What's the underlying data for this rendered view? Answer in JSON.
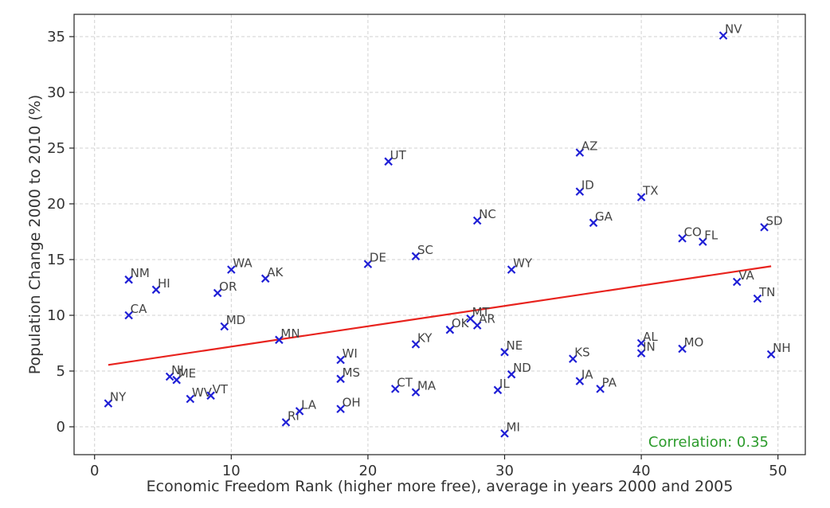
{
  "chart_data": {
    "type": "scatter",
    "title": "",
    "xlabel": "Economic Freedom Rank (higher more free), average in years 2000 and 2005",
    "ylabel": "Population Change 2000 to 2010 (%)",
    "xlim": [
      -1.5,
      52
    ],
    "ylim": [
      -2.5,
      37
    ],
    "xticks": [
      0,
      10,
      20,
      30,
      40,
      50
    ],
    "yticks": [
      0,
      5,
      10,
      15,
      20,
      25,
      30,
      35
    ],
    "grid": true,
    "marker_color": "#1f1fd6",
    "trend_color": "#e8231e",
    "trendline": {
      "x": [
        1,
        49.5
      ],
      "y": [
        5.55,
        14.4
      ]
    },
    "annotation": {
      "text": "Correlation: 0.35",
      "color": "#2b9b2b",
      "position": "bottom-right"
    },
    "points": [
      {
        "label": "NY",
        "x": 1,
        "y": 2.1
      },
      {
        "label": "NM",
        "x": 2.5,
        "y": 13.2
      },
      {
        "label": "CA",
        "x": 2.5,
        "y": 10
      },
      {
        "label": "HI",
        "x": 4.5,
        "y": 12.3
      },
      {
        "label": "NJ",
        "x": 5.5,
        "y": 4.5
      },
      {
        "label": "ME",
        "x": 6,
        "y": 4.2
      },
      {
        "label": "WV",
        "x": 7,
        "y": 2.5
      },
      {
        "label": "VT",
        "x": 8.5,
        "y": 2.8
      },
      {
        "label": "OR",
        "x": 9,
        "y": 12
      },
      {
        "label": "MD",
        "x": 9.5,
        "y": 9
      },
      {
        "label": "WA",
        "x": 10,
        "y": 14.1
      },
      {
        "label": "AK",
        "x": 12.5,
        "y": 13.3
      },
      {
        "label": "MN",
        "x": 13.5,
        "y": 7.8
      },
      {
        "label": "RI",
        "x": 14,
        "y": 0.4
      },
      {
        "label": "LA",
        "x": 15,
        "y": 1.4
      },
      {
        "label": "WI",
        "x": 18,
        "y": 6
      },
      {
        "label": "MS",
        "x": 18,
        "y": 4.3
      },
      {
        "label": "OH",
        "x": 18,
        "y": 1.6
      },
      {
        "label": "DE",
        "x": 20,
        "y": 14.6
      },
      {
        "label": "UT",
        "x": 21.5,
        "y": 23.8
      },
      {
        "label": "CT",
        "x": 22,
        "y": 3.4
      },
      {
        "label": "SC",
        "x": 23.5,
        "y": 15.3
      },
      {
        "label": "KY",
        "x": 23.5,
        "y": 7.4
      },
      {
        "label": "MA",
        "x": 23.5,
        "y": 3.1
      },
      {
        "label": "OK",
        "x": 26,
        "y": 8.7
      },
      {
        "label": "MT",
        "x": 27.5,
        "y": 9.7
      },
      {
        "label": "AR",
        "x": 28,
        "y": 9.1
      },
      {
        "label": "NC",
        "x": 28,
        "y": 18.5
      },
      {
        "label": "IL",
        "x": 29.5,
        "y": 3.3
      },
      {
        "label": "NE",
        "x": 30,
        "y": 6.7
      },
      {
        "label": "MI",
        "x": 30,
        "y": -0.6
      },
      {
        "label": "ND",
        "x": 30.5,
        "y": 4.7
      },
      {
        "label": "WY",
        "x": 30.5,
        "y": 14.1
      },
      {
        "label": "KS",
        "x": 35,
        "y": 6.1
      },
      {
        "label": "AZ",
        "x": 35.5,
        "y": 24.6
      },
      {
        "label": "ID",
        "x": 35.5,
        "y": 21.1
      },
      {
        "label": "IA",
        "x": 35.5,
        "y": 4.1
      },
      {
        "label": "GA",
        "x": 36.5,
        "y": 18.3
      },
      {
        "label": "PA",
        "x": 37,
        "y": 3.4
      },
      {
        "label": "TX",
        "x": 40,
        "y": 20.6
      },
      {
        "label": "AL",
        "x": 40,
        "y": 7.5
      },
      {
        "label": "IN",
        "x": 40,
        "y": 6.6
      },
      {
        "label": "MO",
        "x": 43,
        "y": 7
      },
      {
        "label": "CO",
        "x": 43,
        "y": 16.9
      },
      {
        "label": "FL",
        "x": 44.5,
        "y": 16.6
      },
      {
        "label": "NV",
        "x": 46,
        "y": 35.1
      },
      {
        "label": "VA",
        "x": 47,
        "y": 13
      },
      {
        "label": "TN",
        "x": 48.5,
        "y": 11.5
      },
      {
        "label": "SD",
        "x": 49,
        "y": 17.9
      },
      {
        "label": "NH",
        "x": 49.5,
        "y": 6.5
      }
    ]
  }
}
